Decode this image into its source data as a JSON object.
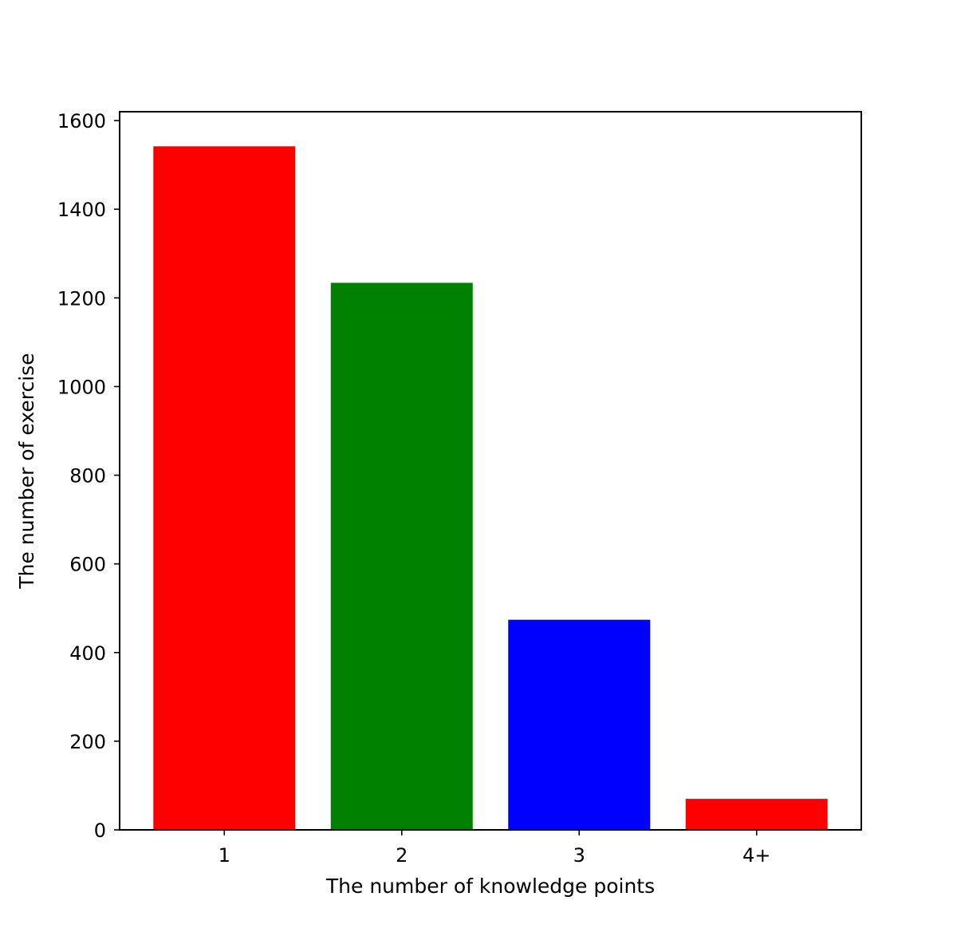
{
  "chart_data": {
    "type": "bar",
    "title": "",
    "xlabel": "The number of knowledge points",
    "ylabel": "The number of exercise",
    "categories": [
      "1",
      "2",
      "3",
      "4+"
    ],
    "values": [
      1542,
      1234,
      474,
      70
    ],
    "colors": [
      "#ff0000",
      "#008000",
      "#0000ff",
      "#ff0000"
    ],
    "ylim": [
      0,
      1620
    ],
    "yticks": [
      0,
      200,
      400,
      600,
      800,
      1000,
      1200,
      1400,
      1600
    ],
    "grid": false,
    "legend": "none"
  }
}
